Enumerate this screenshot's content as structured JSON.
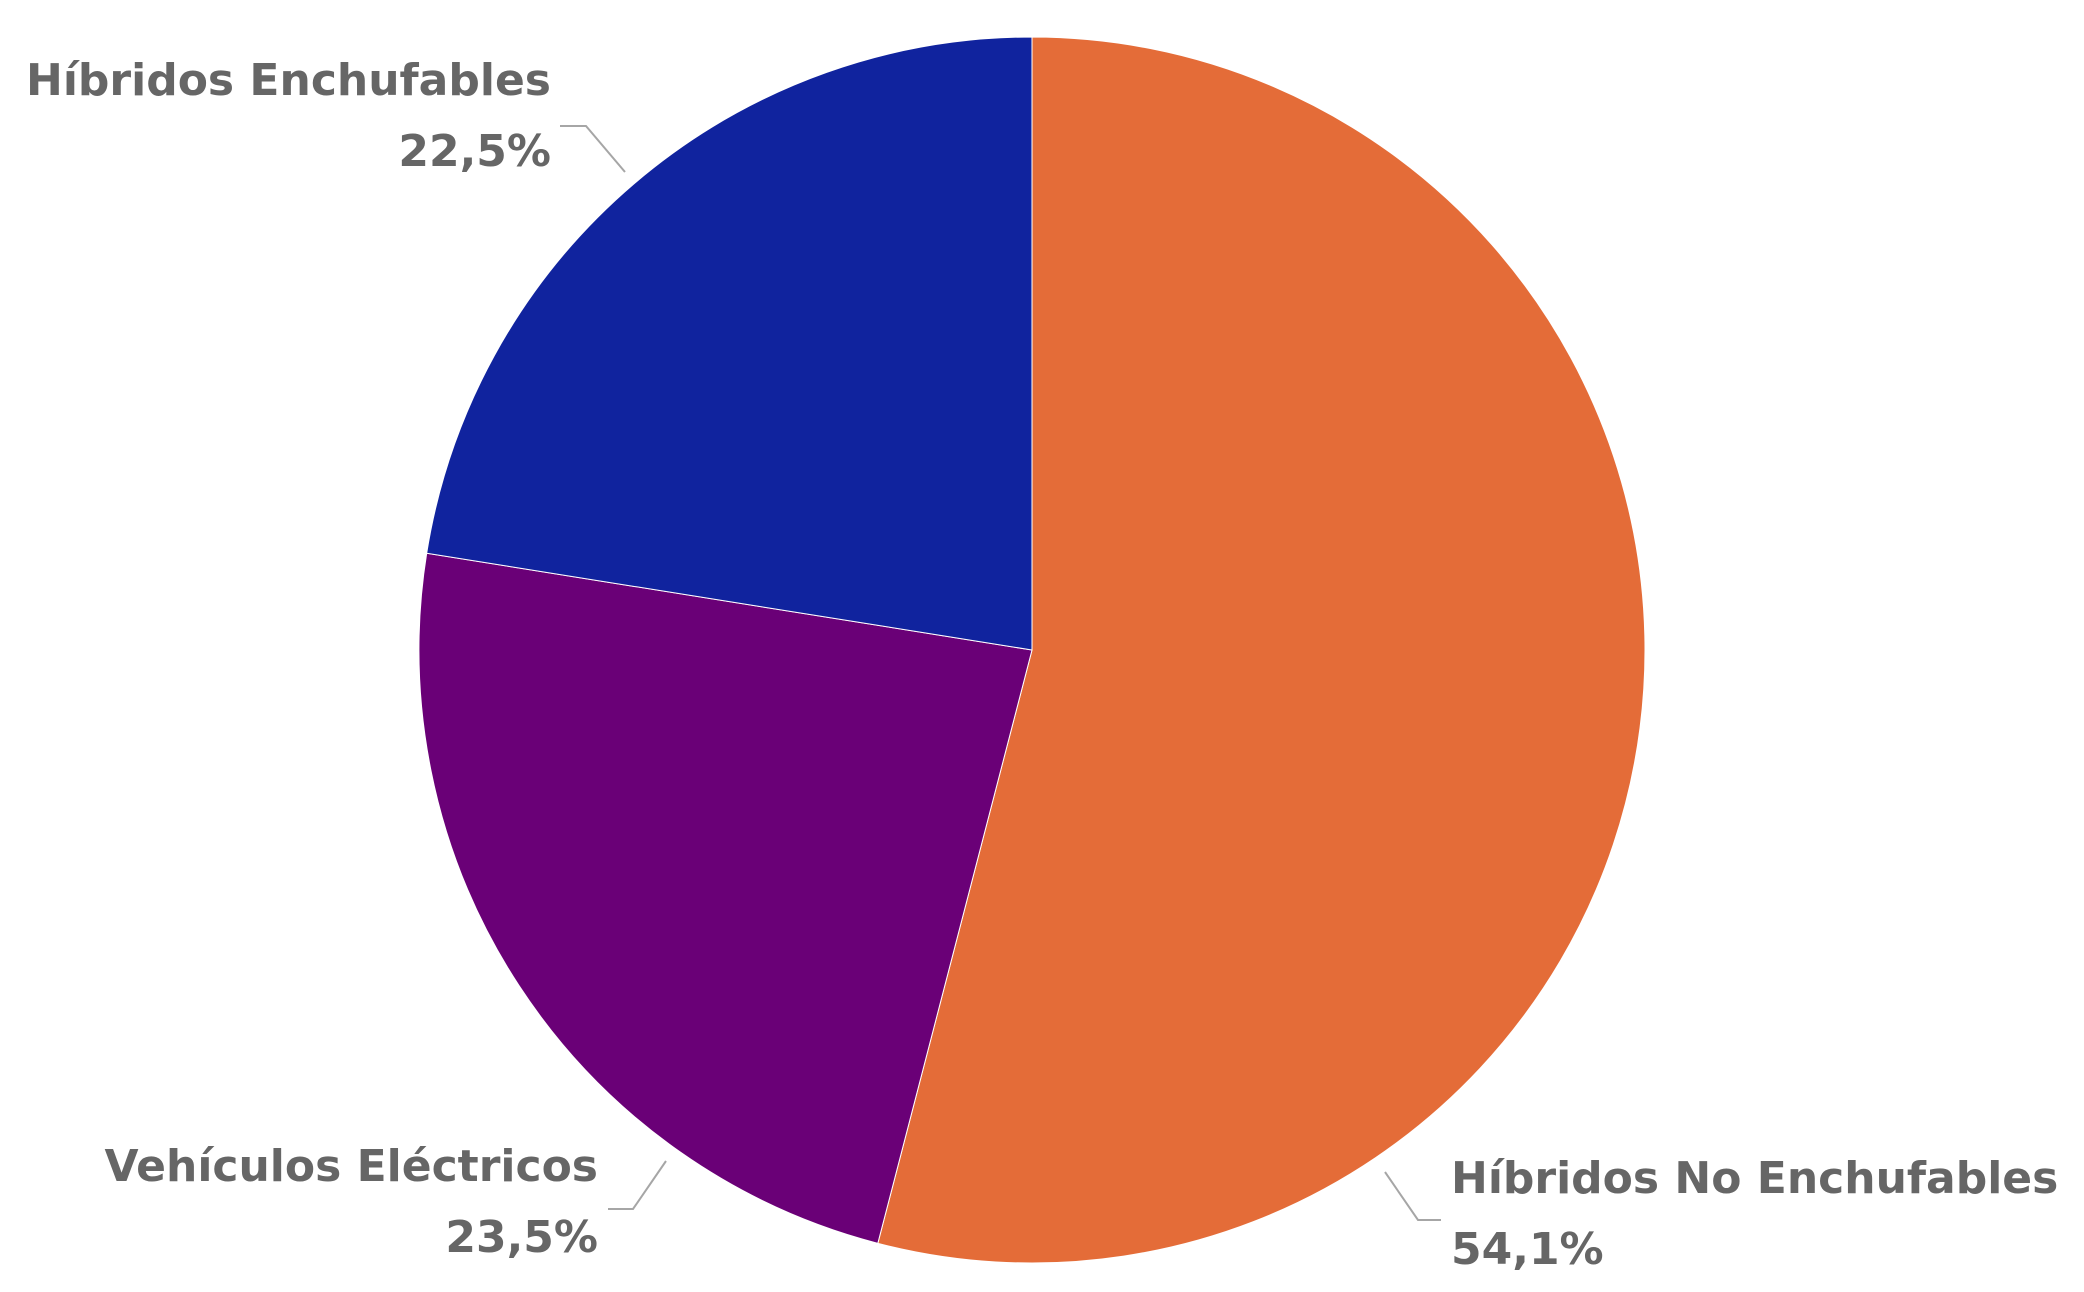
{
  "chart_data": {
    "type": "pie",
    "start": "12 o'clock",
    "direction": "clockwise",
    "slices": [
      {
        "label": "Híbridos No Enchufables",
        "value": 54.1,
        "value_label": "54,1%",
        "color": "#E46C38"
      },
      {
        "label": "Vehículos Eléctricos",
        "value": 23.5,
        "value_label": "23,5%",
        "color": "#6A0077"
      },
      {
        "label": "Híbridos Enchufables",
        "value": 22.5,
        "value_label": "22,5%",
        "color": "#10239E"
      }
    ],
    "label_color": "#666666",
    "leader_line_color": "#A6A6A6",
    "legend": "none"
  }
}
